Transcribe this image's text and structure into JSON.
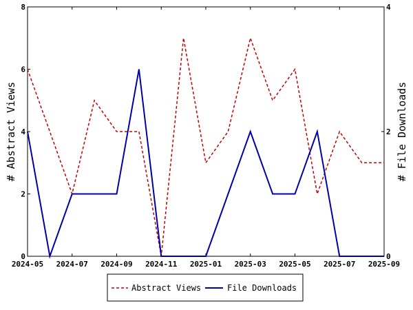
{
  "chart_data": {
    "type": "line",
    "x_ticks": [
      "2024-05",
      "2024-07",
      "2024-09",
      "2024-11",
      "2025-01",
      "2025-03",
      "2025-05",
      "2025-07",
      "2025-09"
    ],
    "x": [
      "2024-05",
      "2024-06",
      "2024-07",
      "2024-08",
      "2024-09",
      "2024-10",
      "2024-11",
      "2024-12",
      "2025-01",
      "2025-02",
      "2025-03",
      "2025-04",
      "2025-05",
      "2025-06",
      "2025-07",
      "2025-08",
      "2025-09"
    ],
    "ylabel_left": "# Abstract Views",
    "ylabel_right": "# File Downloads",
    "ylim_left": [
      0,
      8
    ],
    "ylim_right": [
      0,
      4
    ],
    "yticks_left": [
      "0",
      "2",
      "4",
      "6",
      "8"
    ],
    "yticks_right": [
      "0",
      "2",
      "4"
    ],
    "legend_position": "bottom-center",
    "series": [
      {
        "name": "Abstract Views",
        "axis": "left",
        "color": "#c00000",
        "dash": "dashed",
        "values": [
          6,
          4,
          2,
          5,
          4,
          4,
          0,
          7,
          3,
          4,
          7,
          5,
          6,
          2,
          4,
          3,
          3
        ]
      },
      {
        "name": "File Downloads",
        "axis": "right",
        "color": "#0000a8",
        "dash": "solid",
        "values": [
          2,
          0,
          1,
          1,
          1,
          3,
          0,
          0,
          0,
          1,
          2,
          1,
          1,
          2,
          0,
          0,
          0
        ]
      }
    ]
  }
}
